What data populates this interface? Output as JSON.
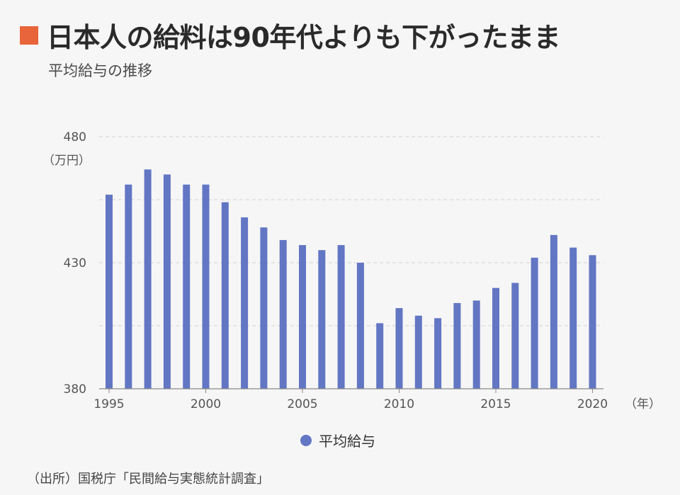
{
  "header": {
    "title": "日本人の給料は90年代よりも下がったまま",
    "subtitle": "平均給与の推移",
    "accent_color": "#e8643a"
  },
  "unit_label": "（万円）",
  "x_unit_label": "（年）",
  "source": "（出所）国税庁「民間給与実態統計調査」",
  "chart_data": {
    "type": "bar",
    "title": "",
    "xlabel": "（年）",
    "ylabel": "（万円）",
    "ylim": [
      380,
      480
    ],
    "yticks": [
      380,
      430,
      480
    ],
    "xtick_labels": [
      "1995",
      "2000",
      "2005",
      "2010",
      "2015",
      "2020"
    ],
    "grid": true,
    "legend_position": "bottom-center",
    "bar_color": "#6276c4",
    "categories": [
      "1995",
      "1996",
      "1997",
      "1998",
      "1999",
      "2000",
      "2001",
      "2002",
      "2003",
      "2004",
      "2005",
      "2006",
      "2007",
      "2008",
      "2009",
      "2010",
      "2011",
      "2012",
      "2013",
      "2014",
      "2015",
      "2016",
      "2017",
      "2018",
      "2019",
      "2020"
    ],
    "series": [
      {
        "name": "平均給与",
        "values": [
          457,
          461,
          467,
          465,
          461,
          461,
          454,
          448,
          444,
          439,
          437,
          435,
          437,
          430,
          406,
          412,
          409,
          408,
          414,
          415,
          420,
          422,
          432,
          441,
          436,
          433
        ]
      }
    ]
  }
}
